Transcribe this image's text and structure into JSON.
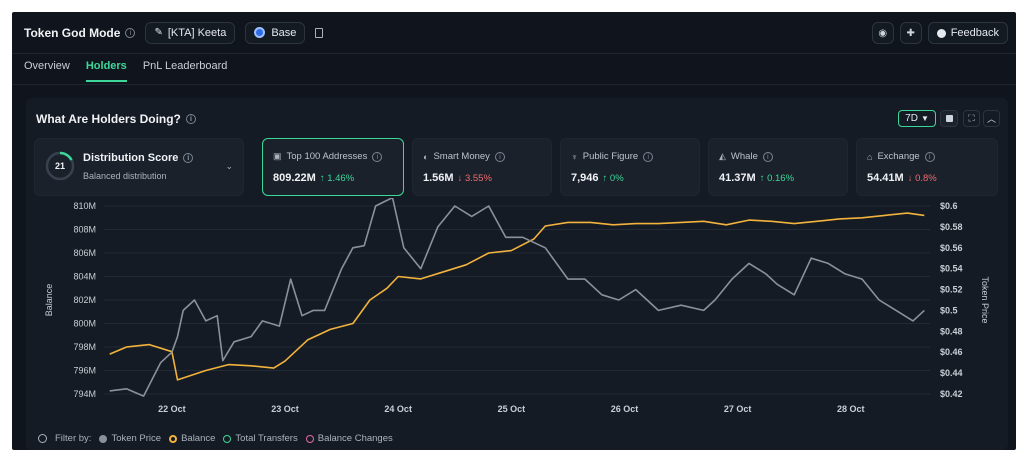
{
  "header": {
    "title": "Token God Mode",
    "token_label": "[KTA] Keeta",
    "chain_label": "Base",
    "feedback_label": "Feedback"
  },
  "tabs": [
    {
      "label": "Overview",
      "active": false
    },
    {
      "label": "Holders",
      "active": true
    },
    {
      "label": "PnL Leaderboard",
      "active": false
    }
  ],
  "panel": {
    "title": "What Are Holders Doing?",
    "range": "7D"
  },
  "score": {
    "value": "21",
    "title": "Distribution Score",
    "subtitle": "Balanced distribution"
  },
  "cards": [
    {
      "label": "Top 100 Addresses",
      "icon": "wallet-icon",
      "value": "809.22M",
      "change": "↑ 1.46%",
      "dir": "up",
      "active": true
    },
    {
      "label": "Smart Money",
      "icon": "smart-money-icon",
      "value": "1.56M",
      "change": "↓ 3.55%",
      "dir": "down",
      "active": false
    },
    {
      "label": "Public Figure",
      "icon": "public-figure-icon",
      "value": "7,946",
      "change": "↑ 0%",
      "dir": "up",
      "active": false
    },
    {
      "label": "Whale",
      "icon": "whale-icon",
      "value": "41.37M",
      "change": "↑ 0.16%",
      "dir": "up",
      "active": false
    },
    {
      "label": "Exchange",
      "icon": "exchange-icon",
      "value": "54.41M",
      "change": "↓ 0.8%",
      "dir": "down",
      "active": false
    }
  ],
  "filter": {
    "label": "Filter by:",
    "items": [
      {
        "label": "Token Price",
        "color": "#8a919c",
        "filled": true
      },
      {
        "label": "Balance",
        "color": "#f2b33d",
        "filled": false
      },
      {
        "label": "Total Transfers",
        "color": "#3ed79a",
        "filled": false
      },
      {
        "label": "Balance Changes",
        "color": "#e06aa8",
        "filled": false
      }
    ]
  },
  "chart_data": {
    "type": "line",
    "ylabel": "Balance",
    "y2label": "Token Price",
    "xticks": [
      "22 Oct",
      "23 Oct",
      "24 Oct",
      "25 Oct",
      "26 Oct",
      "27 Oct",
      "28 Oct"
    ],
    "yticks": [
      "810M",
      "808M",
      "806M",
      "804M",
      "802M",
      "800M",
      "798M",
      "796M",
      "794M"
    ],
    "y2ticks": [
      "$0.6",
      "$0.58",
      "$0.56",
      "$0.54",
      "$0.52",
      "$0.5",
      "$0.48",
      "$0.46",
      "$0.44",
      "$0.42"
    ],
    "ylim": [
      794,
      810
    ],
    "y2lim": [
      0.42,
      0.6
    ],
    "xlim": [
      21.4,
      28.7
    ],
    "series": [
      {
        "name": "Balance",
        "color": "#f2b33d",
        "x": [
          21.45,
          21.6,
          21.8,
          22.0,
          22.05,
          22.3,
          22.5,
          22.7,
          22.9,
          23.0,
          23.2,
          23.4,
          23.6,
          23.75,
          23.9,
          24.0,
          24.2,
          24.4,
          24.6,
          24.8,
          25.0,
          25.2,
          25.3,
          25.5,
          25.7,
          25.9,
          26.1,
          26.3,
          26.5,
          26.7,
          26.9,
          27.1,
          27.3,
          27.5,
          27.7,
          27.9,
          28.1,
          28.3,
          28.5,
          28.65
        ],
        "values": [
          797.4,
          798.0,
          798.2,
          797.6,
          795.2,
          796.0,
          796.5,
          796.4,
          796.2,
          796.8,
          798.6,
          799.5,
          800.0,
          802.0,
          803.0,
          804.0,
          803.8,
          804.4,
          805.0,
          806.0,
          806.2,
          807.2,
          808.3,
          808.6,
          808.6,
          808.4,
          808.5,
          808.5,
          808.6,
          808.7,
          808.4,
          808.8,
          808.7,
          808.5,
          808.7,
          808.9,
          809.0,
          809.2,
          809.4,
          809.2
        ]
      },
      {
        "name": "Token Price",
        "color": "#8a919c",
        "x": [
          21.45,
          21.6,
          21.75,
          21.9,
          22.0,
          22.05,
          22.1,
          22.2,
          22.3,
          22.4,
          22.45,
          22.55,
          22.7,
          22.8,
          22.95,
          23.05,
          23.15,
          23.25,
          23.35,
          23.5,
          23.6,
          23.7,
          23.8,
          23.95,
          24.05,
          24.2,
          24.35,
          24.5,
          24.65,
          24.8,
          24.95,
          25.1,
          25.3,
          25.5,
          25.65,
          25.8,
          25.95,
          26.1,
          26.3,
          26.5,
          26.7,
          26.8,
          26.95,
          27.1,
          27.25,
          27.35,
          27.5,
          27.65,
          27.8,
          27.95,
          28.1,
          28.25,
          28.4,
          28.55,
          28.65
        ],
        "values": [
          0.423,
          0.425,
          0.418,
          0.45,
          0.46,
          0.475,
          0.5,
          0.51,
          0.49,
          0.495,
          0.452,
          0.47,
          0.475,
          0.49,
          0.485,
          0.53,
          0.495,
          0.5,
          0.5,
          0.54,
          0.56,
          0.562,
          0.6,
          0.608,
          0.56,
          0.54,
          0.58,
          0.6,
          0.59,
          0.6,
          0.57,
          0.57,
          0.56,
          0.53,
          0.53,
          0.515,
          0.51,
          0.52,
          0.5,
          0.505,
          0.5,
          0.51,
          0.53,
          0.545,
          0.535,
          0.525,
          0.515,
          0.55,
          0.545,
          0.535,
          0.53,
          0.51,
          0.5,
          0.49,
          0.5
        ]
      }
    ]
  }
}
